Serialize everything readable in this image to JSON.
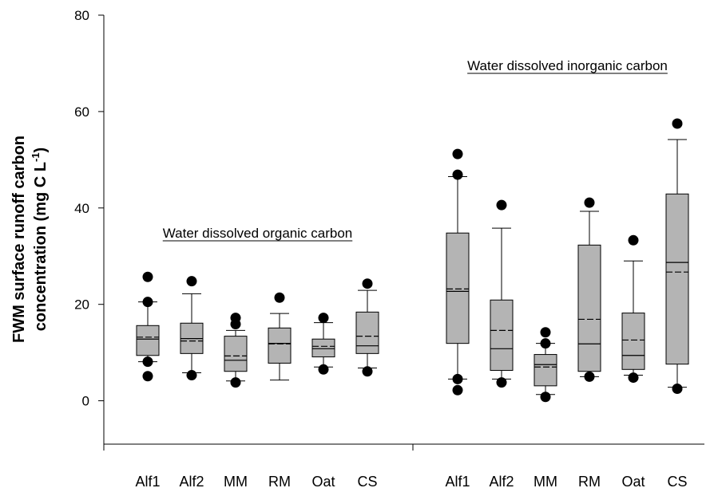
{
  "chart_data": {
    "type": "box",
    "y_label": {
      "line1": "FWM surface runoff carbon",
      "line2": "concentration (mg C L",
      "superscript": "-1",
      "line2_end": ")"
    },
    "ylim": [
      -9,
      80
    ],
    "yticks": [
      0,
      20,
      40,
      60,
      80
    ],
    "box_color": "#b4b4b4",
    "groups": [
      {
        "label": "Water dissolved organic carbon",
        "boxes": [
          {
            "category": "Alf1",
            "min": 8.1,
            "q1": 9.4,
            "median": 12.8,
            "mean": 13.2,
            "q3": 15.6,
            "max": 20.5,
            "outliers": [
              25.7,
              20.5,
              8.1,
              5.1
            ]
          },
          {
            "category": "Alf2",
            "min": 5.8,
            "q1": 9.8,
            "median": 12.9,
            "mean": 12.4,
            "q3": 16.1,
            "max": 22.2,
            "outliers": [
              24.8,
              5.3
            ]
          },
          {
            "category": "MM",
            "min": 4.1,
            "q1": 6.1,
            "median": 8.4,
            "mean": 9.3,
            "q3": 13.4,
            "max": 14.6,
            "outliers": [
              17.2,
              15.9,
              3.8
            ]
          },
          {
            "category": "RM",
            "min": 4.3,
            "q1": 7.8,
            "median": 11.9,
            "mean": 11.8,
            "q3": 15.1,
            "max": 18.1,
            "outliers": [
              21.4
            ]
          },
          {
            "category": "Oat",
            "min": 7.0,
            "q1": 9.1,
            "median": 10.8,
            "mean": 11.3,
            "q3": 12.8,
            "max": 16.2,
            "outliers": [
              17.2,
              6.5
            ]
          },
          {
            "category": "CS",
            "min": 6.8,
            "q1": 9.8,
            "median": 11.4,
            "mean": 13.4,
            "q3": 18.4,
            "max": 22.9,
            "outliers": [
              24.3,
              6.1
            ]
          }
        ]
      },
      {
        "label": "Water dissolved inorganic carbon",
        "boxes": [
          {
            "category": "Alf1",
            "min": 4.5,
            "q1": 11.9,
            "median": 22.7,
            "mean": 23.2,
            "q3": 34.8,
            "max": 46.5,
            "outliers": [
              51.2,
              46.9,
              4.5,
              2.2
            ]
          },
          {
            "category": "Alf2",
            "min": 4.5,
            "q1": 6.3,
            "median": 10.8,
            "mean": 14.6,
            "q3": 20.9,
            "max": 35.8,
            "outliers": [
              40.6,
              3.8
            ]
          },
          {
            "category": "MM",
            "min": 1.3,
            "q1": 3.1,
            "median": 7.5,
            "mean": 7.0,
            "q3": 9.6,
            "max": 11.9,
            "outliers": [
              14.2,
              11.9,
              0.8
            ]
          },
          {
            "category": "RM",
            "min": 5.0,
            "q1": 6.1,
            "median": 11.8,
            "mean": 16.9,
            "q3": 32.3,
            "max": 39.3,
            "outliers": [
              41.1,
              5.0
            ]
          },
          {
            "category": "Oat",
            "min": 5.3,
            "q1": 6.5,
            "median": 9.4,
            "mean": 12.6,
            "q3": 18.2,
            "max": 29.0,
            "outliers": [
              33.3,
              4.8
            ]
          },
          {
            "category": "CS",
            "min": 2.8,
            "q1": 7.6,
            "median": 28.7,
            "mean": 26.7,
            "q3": 42.9,
            "max": 54.2,
            "outliers": [
              57.5,
              2.5
            ]
          }
        ]
      }
    ]
  }
}
